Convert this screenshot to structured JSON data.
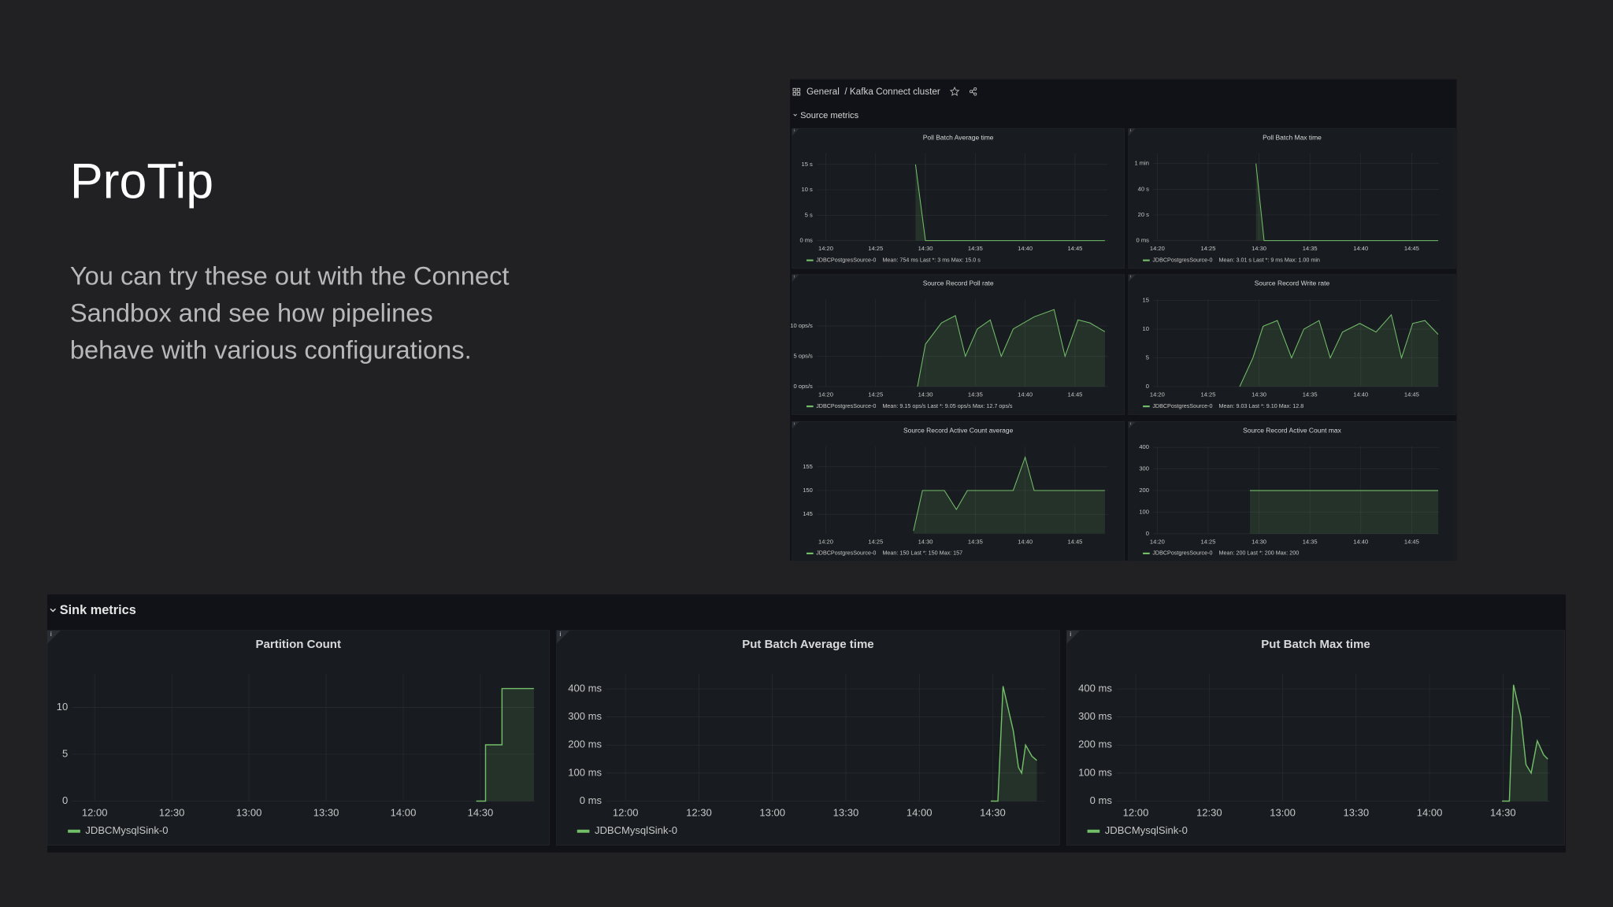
{
  "slide": {
    "title": "ProTip",
    "text": [
      "You can try these out with the Connect",
      "Sandbox and see how pipelines",
      "behave with various configurations."
    ]
  },
  "dashboard": {
    "breadcrumb": "General",
    "dashboard_title": "/ Kafka Connect cluster",
    "source_section": "Source metrics",
    "source_panels": [
      {
        "type": "line",
        "title": "Poll Batch Average time",
        "xlim": [
          859.1,
          888.3
        ],
        "ylim": [
          0,
          17200
        ],
        "xticks": [
          {
            "value": 860,
            "label": "14:20"
          },
          {
            "value": 865,
            "label": "14:25"
          },
          {
            "value": 870,
            "label": "14:30"
          },
          {
            "value": 875,
            "label": "14:35"
          },
          {
            "value": 880,
            "label": "14:40"
          },
          {
            "value": 885,
            "label": "14:45"
          }
        ],
        "yticks": [
          {
            "value": 0,
            "label": "0 ms"
          },
          {
            "value": 5000,
            "label": "5 s"
          },
          {
            "value": 10000,
            "label": "10 s"
          },
          {
            "value": 15000,
            "label": "15 s"
          }
        ],
        "series": [
          {
            "name": "JDBCPostgresSource-0",
            "color": "#73bf69",
            "x": [
              869,
              870,
              888
            ],
            "values": [
              15000,
              0,
              3
            ]
          }
        ],
        "legend_stats": "Mean: 754 ms  Last *: 3 ms  Max: 15.0 s"
      },
      {
        "type": "line",
        "title": "Poll Batch Max time",
        "xlim": [
          859.6,
          887.7
        ],
        "ylim": [
          0,
          68000
        ],
        "xticks": [
          {
            "value": 860,
            "label": "14:20"
          },
          {
            "value": 865,
            "label": "14:25"
          },
          {
            "value": 870,
            "label": "14:30"
          },
          {
            "value": 875,
            "label": "14:35"
          },
          {
            "value": 880,
            "label": "14:40"
          },
          {
            "value": 885,
            "label": "14:45"
          }
        ],
        "yticks": [
          {
            "value": 0,
            "label": "0 ms"
          },
          {
            "value": 20000,
            "label": "20 s"
          },
          {
            "value": 40000,
            "label": "40 s"
          },
          {
            "value": 60000,
            "label": "1 min"
          }
        ],
        "series": [
          {
            "name": "JDBCPostgresSource-0",
            "color": "#73bf69",
            "x": [
              869.7,
              870.5,
              887.6
            ],
            "values": [
              60000,
              0,
              9
            ]
          }
        ],
        "legend_stats": "Mean: 3.01 s  Last *: 9 ms  Max: 1.00 min"
      },
      {
        "type": "line",
        "title": "Source Record Poll rate",
        "xlim": [
          859.1,
          888.3
        ],
        "ylim": [
          0,
          14.4
        ],
        "xticks": [
          {
            "value": 860,
            "label": "14:20"
          },
          {
            "value": 865,
            "label": "14:25"
          },
          {
            "value": 870,
            "label": "14:30"
          },
          {
            "value": 875,
            "label": "14:35"
          },
          {
            "value": 880,
            "label": "14:40"
          },
          {
            "value": 885,
            "label": "14:45"
          }
        ],
        "yticks": [
          {
            "value": 0,
            "label": "0 ops/s"
          },
          {
            "value": 5,
            "label": "5 ops/s"
          },
          {
            "value": 10,
            "label": "10 ops/s"
          }
        ],
        "series": [
          {
            "name": "JDBCPostgresSource-0",
            "color": "#73bf69",
            "x": [
              869.2,
              870,
              871.6,
              873,
              874,
              875.2,
              876.5,
              877.6,
              878.8,
              880.9,
              882.9,
              884,
              885.3,
              886.5,
              888
            ],
            "values": [
              0,
              7,
              10.5,
              11.7,
              5,
              9.5,
              11,
              5,
              9.5,
              11.5,
              12.7,
              5,
              11,
              10.5,
              9.05
            ]
          }
        ],
        "legend_stats": "Mean: 9.15 ops/s  Last *: 9.05 ops/s  Max: 12.7 ops/s"
      },
      {
        "type": "line",
        "title": "Source Record Write rate",
        "xlim": [
          859.6,
          887.7
        ],
        "ylim": [
          0,
          15.2
        ],
        "xticks": [
          {
            "value": 860,
            "label": "14:20"
          },
          {
            "value": 865,
            "label": "14:25"
          },
          {
            "value": 870,
            "label": "14:30"
          },
          {
            "value": 875,
            "label": "14:35"
          },
          {
            "value": 880,
            "label": "14:40"
          },
          {
            "value": 885,
            "label": "14:45"
          }
        ],
        "yticks": [
          0,
          5,
          10,
          15
        ],
        "series": [
          {
            "name": "JDBCPostgresSource-0",
            "color": "#73bf69",
            "x": [
              868.1,
              869.4,
              870.4,
              871.8,
              873.2,
              874.4,
              875.9,
              877,
              878.2,
              879.9,
              881.5,
              883,
              884,
              885.1,
              886.3,
              887.6
            ],
            "values": [
              0,
              5,
              10.5,
              11.5,
              5,
              10,
              11.5,
              5,
              9.5,
              11,
              9.5,
              12.5,
              5,
              11,
              11.5,
              9.1
            ]
          }
        ],
        "legend_stats": "Mean: 9.03  Last *: 9.10  Max: 12.8"
      },
      {
        "type": "line",
        "title": "Source Record Active Count average",
        "xlim": [
          859.1,
          888.3
        ],
        "ylim": [
          140.9,
          159.3
        ],
        "xticks": [
          {
            "value": 860,
            "label": "14:20"
          },
          {
            "value": 865,
            "label": "14:25"
          },
          {
            "value": 870,
            "label": "14:30"
          },
          {
            "value": 875,
            "label": "14:35"
          },
          {
            "value": 880,
            "label": "14:40"
          },
          {
            "value": 885,
            "label": "14:45"
          }
        ],
        "yticks": [
          145,
          150,
          155
        ],
        "series": [
          {
            "name": "JDBCPostgresSource-0",
            "color": "#73bf69",
            "x": [
              868.8,
              869.7,
              871.9,
              873.1,
              874.2,
              878.8,
              880,
              880.9,
              888
            ],
            "values": [
              141.5,
              150,
              150,
              146,
              150,
              150,
              157,
              150,
              150
            ]
          }
        ],
        "legend_stats": "Mean: 150  Last *: 150  Max: 157"
      },
      {
        "type": "line",
        "title": "Source Record Active Count max",
        "xlim": [
          859.6,
          887.7
        ],
        "ylim": [
          0,
          405
        ],
        "xticks": [
          {
            "value": 860,
            "label": "14:20"
          },
          {
            "value": 865,
            "label": "14:25"
          },
          {
            "value": 870,
            "label": "14:30"
          },
          {
            "value": 875,
            "label": "14:35"
          },
          {
            "value": 880,
            "label": "14:40"
          },
          {
            "value": 885,
            "label": "14:45"
          }
        ],
        "yticks": [
          0,
          100,
          200,
          300,
          400
        ],
        "series": [
          {
            "name": "JDBCPostgresSource-0",
            "color": "#73bf69",
            "x": [
              869.1,
              887.6
            ],
            "values": [
              200,
              200
            ]
          }
        ],
        "legend_stats": "Mean: 200  Last *: 200  Max: 200"
      }
    ],
    "sink_section": "Sink metrics",
    "sink_panels": [
      {
        "type": "line",
        "title": "Partition Count",
        "xlim": [
          711.2,
          891.2
        ],
        "ylim": [
          0,
          13.6
        ],
        "xticks": [
          {
            "value": 720,
            "label": "12:00"
          },
          {
            "value": 750,
            "label": "12:30"
          },
          {
            "value": 780,
            "label": "13:00"
          },
          {
            "value": 810,
            "label": "13:30"
          },
          {
            "value": 840,
            "label": "14:00"
          },
          {
            "value": 870,
            "label": "14:30"
          }
        ],
        "yticks": [
          0,
          5,
          10
        ],
        "series": [
          {
            "name": "JDBCMysqlSink-0",
            "color": "#73bf69",
            "x": [
              868.4,
              872,
              872,
              878.4,
              878.4,
              890.8
            ],
            "values": [
              0,
              0,
              6,
              6,
              12,
              12
            ]
          }
        ]
      },
      {
        "type": "line",
        "title": "Put Batch Average time",
        "xlim": [
          712,
          891.4
        ],
        "ylim": [
          0,
          455
        ],
        "xticks": [
          {
            "value": 720,
            "label": "12:00"
          },
          {
            "value": 750,
            "label": "12:30"
          },
          {
            "value": 780,
            "label": "13:00"
          },
          {
            "value": 810,
            "label": "13:30"
          },
          {
            "value": 840,
            "label": "14:00"
          },
          {
            "value": 870,
            "label": "14:30"
          }
        ],
        "yticks": [
          {
            "value": 0,
            "label": "0 ms"
          },
          {
            "value": 100,
            "label": "100 ms"
          },
          {
            "value": 200,
            "label": "200 ms"
          },
          {
            "value": 300,
            "label": "300 ms"
          },
          {
            "value": 400,
            "label": "400 ms"
          }
        ],
        "series": [
          {
            "name": "JDBCMysqlSink-0",
            "color": "#73bf69",
            "x": [
              869.2,
              872.1,
              874.2,
              878.4,
              880.5,
              881.8,
              883.4,
              886,
              888
            ],
            "values": [
              0,
              0,
              410,
              250,
              120,
              100,
              200,
              160,
              145
            ]
          }
        ]
      },
      {
        "type": "line",
        "title": "Put Batch Max time",
        "xlim": [
          712,
          889.3
        ],
        "ylim": [
          0,
          455
        ],
        "xticks": [
          {
            "value": 720,
            "label": "12:00"
          },
          {
            "value": 750,
            "label": "12:30"
          },
          {
            "value": 780,
            "label": "13:00"
          },
          {
            "value": 810,
            "label": "13:30"
          },
          {
            "value": 840,
            "label": "14:00"
          },
          {
            "value": 870,
            "label": "14:30"
          }
        ],
        "yticks": [
          {
            "value": 0,
            "label": "0 ms"
          },
          {
            "value": 100,
            "label": "100 ms"
          },
          {
            "value": 200,
            "label": "200 ms"
          },
          {
            "value": 300,
            "label": "300 ms"
          },
          {
            "value": 400,
            "label": "400 ms"
          }
        ],
        "series": [
          {
            "name": "JDBCMysqlSink-0",
            "color": "#73bf69",
            "x": [
              869.6,
              872.6,
              874.3,
              877.3,
              879.4,
              881.5,
              884,
              886.6,
              888.3
            ],
            "values": [
              0,
              0,
              415,
              300,
              130,
              100,
              215,
              165,
              150
            ]
          }
        ]
      }
    ]
  }
}
